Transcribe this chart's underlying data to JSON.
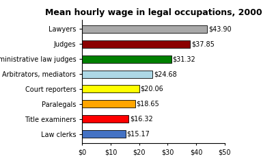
{
  "title": "Mean hourly wage in legal occupations, 2000",
  "categories": [
    "Law clerks",
    "Title examiners",
    "Paralegals",
    "Court reporters",
    "Arbitrators, mediators",
    "Administrative law judges",
    "Judges",
    "Lawyers"
  ],
  "values": [
    15.17,
    16.32,
    18.65,
    20.06,
    24.68,
    31.32,
    37.85,
    43.9
  ],
  "colors": [
    "#4472C4",
    "#FF0000",
    "#FFA500",
    "#FFFF00",
    "#ADD8E6",
    "#008000",
    "#8B0000",
    "#A9A9A9"
  ],
  "labels": [
    "$15.17",
    "$16.32",
    "$18.65",
    "$20.06",
    "$24.68",
    "$31.32",
    "$37.85",
    "$43.90"
  ],
  "xlim": [
    0,
    50
  ],
  "xticks": [
    0,
    10,
    20,
    30,
    40,
    50
  ],
  "xticklabels": [
    "$0",
    "$10",
    "$20",
    "$30",
    "$40",
    "$50"
  ],
  "background_color": "#FFFFFF",
  "title_fontsize": 9,
  "label_fontsize": 7,
  "tick_fontsize": 7,
  "bar_height": 0.5
}
